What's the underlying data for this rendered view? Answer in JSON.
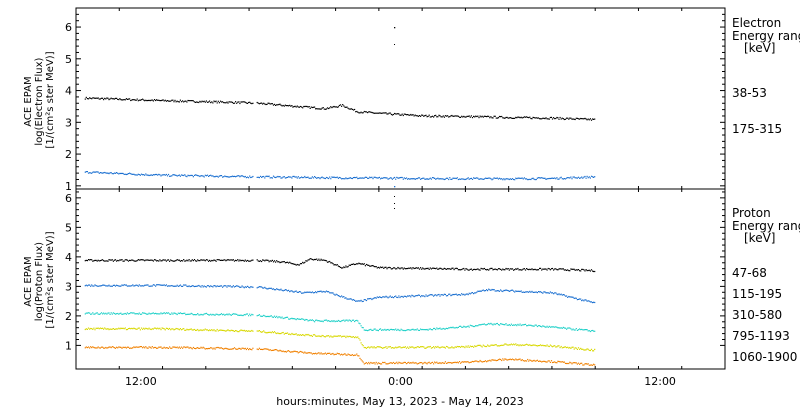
{
  "chart_data": [
    {
      "type": "scatter",
      "panel": "electron",
      "ylabel_lines": [
        "ACE EPAM",
        "log(Electron Flux)",
        "[1/(cm²s ster MeV)]"
      ],
      "legend_title": "Electron",
      "legend_subtitle": "Energy range",
      "legend_unit": "[keV]",
      "ylim": [
        0.9,
        6.6
      ],
      "yticks": [
        1,
        2,
        3,
        4,
        5,
        6
      ],
      "xlim": [
        6,
        30
      ],
      "xticks": [
        {
          "x": 9,
          "label": "12:00"
        },
        {
          "x": 21,
          "label": "0:00"
        },
        {
          "x": 33,
          "label": "12:00"
        }
      ],
      "gap": [
        14.2,
        14.35
      ],
      "series": [
        {
          "name": "38-53",
          "color": "#000000",
          "values": [
            [
              6.4,
              3.78
            ],
            [
              10,
              3.7
            ],
            [
              13,
              3.65
            ],
            [
              14.35,
              3.62
            ],
            [
              16.5,
              3.5
            ],
            [
              17.5,
              3.45
            ],
            [
              18.3,
              3.55
            ],
            [
              19,
              3.35
            ],
            [
              20,
              3.3
            ],
            [
              22,
              3.22
            ],
            [
              24,
              3.2
            ],
            [
              26,
              3.17
            ],
            [
              28,
              3.15
            ],
            [
              30,
              3.1
            ]
          ]
        },
        {
          "name": "175-315",
          "color": "#1a6fd0",
          "values": [
            [
              6.4,
              1.45
            ],
            [
              10,
              1.35
            ],
            [
              14.35,
              1.3
            ],
            [
              18,
              1.27
            ],
            [
              22,
              1.25
            ],
            [
              26,
              1.24
            ],
            [
              28,
              1.25
            ],
            [
              30,
              1.3
            ]
          ]
        }
      ]
    },
    {
      "type": "scatter",
      "panel": "proton",
      "ylabel_lines": [
        "ACE EPAM",
        "log(Proton Flux)",
        "[1/(cm²s ster MeV)]"
      ],
      "legend_title": "Proton",
      "legend_subtitle": "Energy range",
      "legend_unit": "[keV]",
      "ylim": [
        0.2,
        6.3
      ],
      "yticks": [
        1,
        2,
        3,
        4,
        5,
        6
      ],
      "xlim": [
        6,
        30
      ],
      "xticks": [
        {
          "x": 9,
          "label": "12:00"
        },
        {
          "x": 21,
          "label": "0:00"
        },
        {
          "x": 33,
          "label": "12:00"
        }
      ],
      "gap": [
        14.2,
        14.35
      ],
      "series": [
        {
          "name": "47-68",
          "color": "#000000",
          "values": [
            [
              6.4,
              3.9
            ],
            [
              10,
              3.9
            ],
            [
              14.35,
              3.9
            ],
            [
              15.5,
              3.85
            ],
            [
              16.3,
              3.75
            ],
            [
              16.8,
              3.95
            ],
            [
              17.5,
              3.9
            ],
            [
              18.3,
              3.65
            ],
            [
              19,
              3.8
            ],
            [
              20,
              3.65
            ],
            [
              24,
              3.6
            ],
            [
              28,
              3.6
            ],
            [
              30,
              3.55
            ]
          ]
        },
        {
          "name": "115-195",
          "color": "#1a6fd0",
          "values": [
            [
              6.4,
              3.05
            ],
            [
              10,
              3.05
            ],
            [
              14.35,
              3.0
            ],
            [
              16.5,
              2.8
            ],
            [
              17.5,
              2.85
            ],
            [
              19,
              2.5
            ],
            [
              20,
              2.65
            ],
            [
              22,
              2.7
            ],
            [
              24,
              2.75
            ],
            [
              25,
              2.9
            ],
            [
              28,
              2.8
            ],
            [
              30,
              2.45
            ]
          ]
        },
        {
          "name": "310-580",
          "color": "#20d0c8",
          "values": [
            [
              6.4,
              2.1
            ],
            [
              10,
              2.1
            ],
            [
              14.35,
              2.05
            ],
            [
              17,
              1.85
            ],
            [
              19,
              1.85
            ],
            [
              19.3,
              1.55
            ],
            [
              22,
              1.55
            ],
            [
              24,
              1.65
            ],
            [
              25,
              1.75
            ],
            [
              27,
              1.7
            ],
            [
              30,
              1.5
            ]
          ]
        },
        {
          "name": "795-1193",
          "color": "#d8d800",
          "values": [
            [
              6.4,
              1.58
            ],
            [
              10,
              1.58
            ],
            [
              14.35,
              1.5
            ],
            [
              17,
              1.35
            ],
            [
              19,
              1.3
            ],
            [
              19.3,
              0.95
            ],
            [
              22,
              0.95
            ],
            [
              24,
              0.97
            ],
            [
              26,
              1.05
            ],
            [
              28,
              1.0
            ],
            [
              30,
              0.85
            ]
          ]
        },
        {
          "name": "1060-1900",
          "color": "#f08000",
          "values": [
            [
              6.4,
              0.95
            ],
            [
              10,
              0.95
            ],
            [
              14.35,
              0.9
            ],
            [
              17,
              0.75
            ],
            [
              19,
              0.7
            ],
            [
              19.3,
              0.42
            ],
            [
              22,
              0.42
            ],
            [
              24,
              0.45
            ],
            [
              26,
              0.55
            ],
            [
              28,
              0.47
            ],
            [
              30,
              0.35
            ]
          ]
        }
      ]
    }
  ],
  "xlabel": "hours:minutes, May 13, 2023 - May 14, 2023"
}
